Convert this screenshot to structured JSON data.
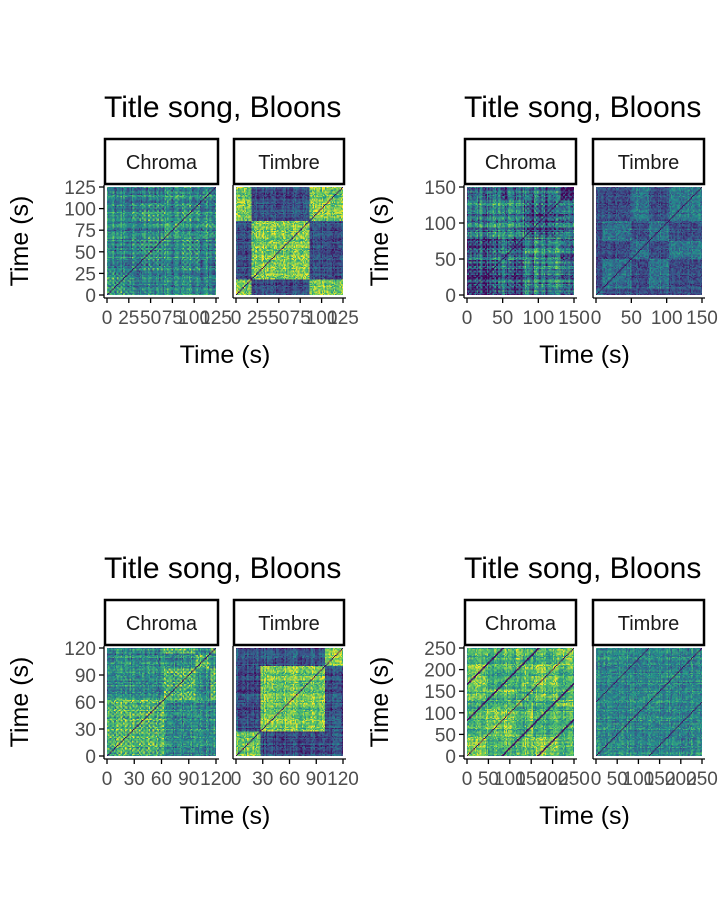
{
  "chart_data": [
    {
      "type": "heatmap",
      "title": "Title song, Bloons",
      "facets": [
        "Chroma",
        "Timbre"
      ],
      "xlabel": "Time (s)",
      "ylabel": "Time (s)",
      "xlim": [
        0,
        125
      ],
      "ylim": [
        0,
        125
      ],
      "xticks": [
        0,
        25,
        50,
        75,
        100,
        125
      ],
      "xtick_labels": [
        "0",
        "25",
        "50",
        "75",
        "100",
        "125"
      ],
      "yticks": [
        0,
        25,
        50,
        75,
        100,
        125
      ],
      "ytick_labels": [
        "0",
        "25",
        "50",
        "75",
        "100",
        "125"
      ],
      "colormap": "viridis",
      "grid": false,
      "legend": "none"
    },
    {
      "type": "heatmap",
      "title": "Title song, Bloons",
      "facets": [
        "Chroma",
        "Timbre"
      ],
      "xlabel": "Time (s)",
      "ylabel": "Time (s)",
      "xlim": [
        0,
        150
      ],
      "ylim": [
        0,
        150
      ],
      "xticks": [
        0,
        50,
        100,
        150
      ],
      "xtick_labels": [
        "0",
        "50",
        "100",
        "150"
      ],
      "yticks": [
        0,
        50,
        100,
        150
      ],
      "ytick_labels": [
        "0",
        "50",
        "100",
        "150"
      ],
      "colormap": "viridis",
      "grid": false,
      "legend": "none"
    },
    {
      "type": "heatmap",
      "title": "Title song, Bloons",
      "facets": [
        "Chroma",
        "Timbre"
      ],
      "xlabel": "Time (s)",
      "ylabel": "Time (s)",
      "xlim": [
        0,
        120
      ],
      "ylim": [
        0,
        120
      ],
      "xticks": [
        0,
        30,
        60,
        90,
        120
      ],
      "xtick_labels": [
        "0",
        "30",
        "60",
        "90",
        "120"
      ],
      "yticks": [
        0,
        30,
        60,
        90,
        120
      ],
      "ytick_labels": [
        "0",
        "30",
        "60",
        "90",
        "120"
      ],
      "colormap": "viridis",
      "grid": false,
      "legend": "none"
    },
    {
      "type": "heatmap",
      "title": "Title song, Bloons",
      "facets": [
        "Chroma",
        "Timbre"
      ],
      "xlabel": "Time (s)",
      "ylabel": "Time (s)",
      "xlim": [
        0,
        250
      ],
      "ylim": [
        0,
        250
      ],
      "xticks": [
        0,
        50,
        100,
        150,
        200,
        250
      ],
      "xtick_labels": [
        "0",
        "50",
        "100",
        "150",
        "200",
        "250"
      ],
      "yticks": [
        0,
        50,
        100,
        150,
        200,
        250
      ],
      "ytick_labels": [
        "0",
        "50",
        "100",
        "150",
        "200",
        "250"
      ],
      "colormap": "viridis",
      "grid": false,
      "legend": "none"
    }
  ]
}
